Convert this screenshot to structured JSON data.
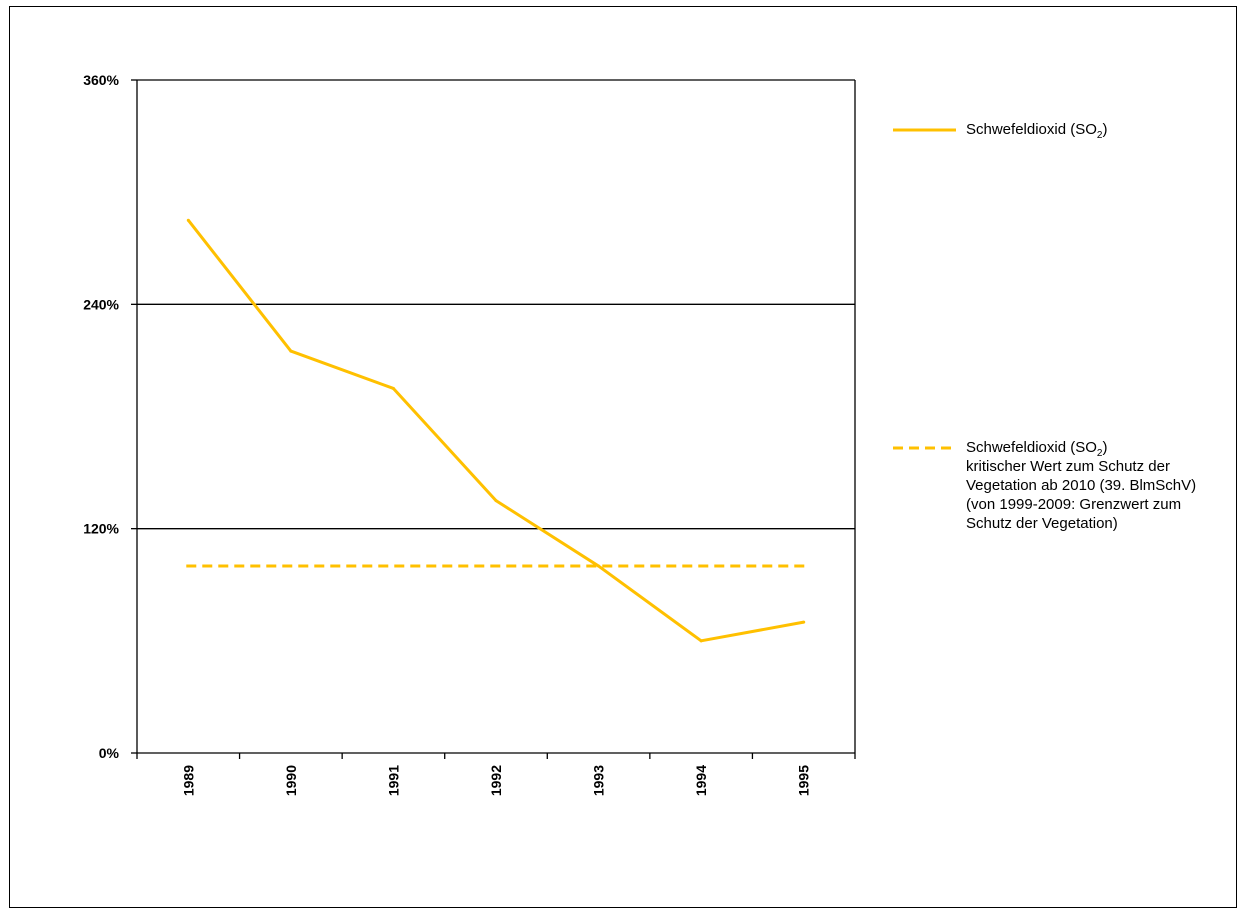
{
  "chart_data": {
    "type": "line",
    "categories": [
      "1989",
      "1990",
      "1991",
      "1992",
      "1993",
      "1994",
      "1995"
    ],
    "series": [
      {
        "name": "Schwefeldioxid (SO2)",
        "values": [
          285,
          215,
          195,
          135,
          100,
          60,
          70
        ],
        "color": "#FFC000",
        "style": "solid"
      },
      {
        "name": "Schwefeldioxid (SO2) kritischer Wert zum Schutz der Vegetation ab 2010 (39. BImSchV) (von 1999-2009: Grenzwert zum Schutz der Vegetation)",
        "values": [
          100,
          100,
          100,
          100,
          100,
          100,
          100
        ],
        "color": "#FFC000",
        "style": "dashed"
      }
    ],
    "y_tick_labels": [
      "0%",
      "120%",
      "240%",
      "360%"
    ],
    "yticks": [
      0,
      120,
      240,
      360
    ],
    "ylim": [
      0,
      360
    ],
    "y_unit": "%",
    "grid": "horizontal",
    "legend_position": "right"
  },
  "legend": {
    "item1": {
      "prefix": "Schwefeldioxid (SO",
      "sub": "2",
      "suffix": ")"
    },
    "item2": {
      "prefix": "Schwefeldioxid (SO",
      "sub": "2",
      "suffix": ")",
      "rest": "kritischer Wert zum Schutz der Vegetation ab 2010 (39. BlmSchV) (von 1999-2009: Grenzwert zum Schutz der Vegetation)"
    }
  }
}
